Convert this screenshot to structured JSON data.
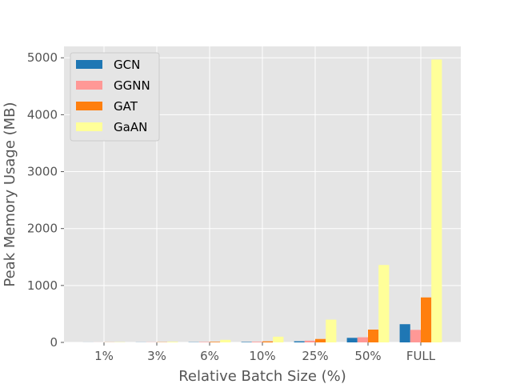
{
  "chart_data": {
    "type": "bar",
    "xlabel": "Relative Batch Size (%)",
    "ylabel": "Peak Memory Usage (MB)",
    "categories": [
      "1%",
      "3%",
      "6%",
      "10%",
      "25%",
      "50%",
      "FULL"
    ],
    "ylim": [
      0,
      5200
    ],
    "yticks": [
      0,
      1000,
      2000,
      3000,
      4000,
      5000
    ],
    "grid": true,
    "legend_position": "top-left",
    "series": [
      {
        "name": "GCN",
        "color": "#1f77b4",
        "values": [
          1,
          2,
          4,
          8,
          20,
          80,
          320
        ]
      },
      {
        "name": "GGNN",
        "color": "#ff9896",
        "values": [
          1,
          3,
          8,
          12,
          30,
          90,
          220
        ]
      },
      {
        "name": "GAT",
        "color": "#ff7f0e",
        "values": [
          2,
          4,
          10,
          18,
          60,
          225,
          790
        ]
      },
      {
        "name": "GaAN",
        "color": "#ffff99",
        "values": [
          5,
          12,
          45,
          100,
          400,
          1360,
          4970
        ]
      }
    ]
  }
}
